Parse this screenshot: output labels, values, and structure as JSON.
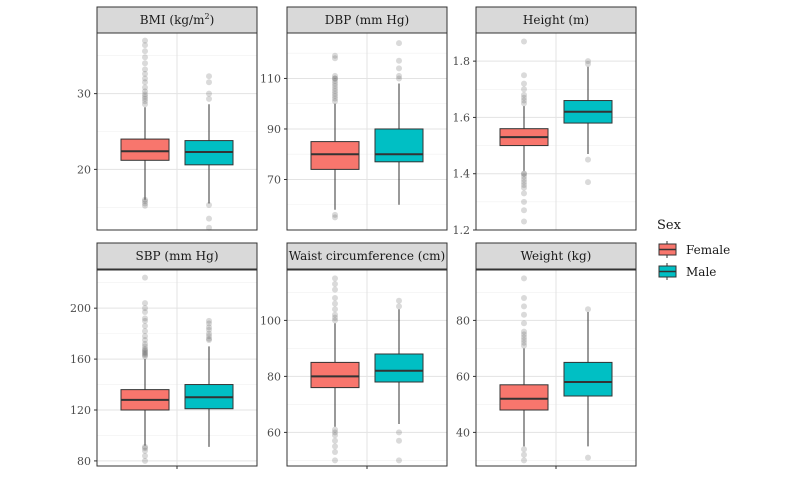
{
  "chart_data": {
    "type": "boxplot",
    "facet_layout": "2 rows x 3 columns, free y scales",
    "legend": {
      "title": "Sex",
      "position": "right",
      "entries": [
        {
          "name": "Female",
          "color": "#F8766D"
        },
        {
          "name": "Male",
          "color": "#00BFC4"
        }
      ]
    },
    "panels": [
      {
        "title": "BMI (kg/m",
        "title_sup": "2",
        "title_end": ")",
        "ylim": [
          12,
          38
        ],
        "yticks": [
          20,
          30
        ],
        "groups": [
          {
            "sex": "Female",
            "q1": 21.2,
            "median": 22.4,
            "q3": 24.0,
            "whisker_low": 16.0,
            "whisker_high": 28.2,
            "outliers": [
              15.2,
              15.5,
              15.8,
              16.0,
              28.6,
              29.0,
              29.3,
              29.6,
              29.9,
              30.3,
              30.8,
              31.5,
              32.0,
              32.6,
              33.2,
              34.0,
              34.8,
              35.6,
              36.4,
              37.0
            ]
          },
          {
            "sex": "Male",
            "q1": 20.6,
            "median": 22.3,
            "q3": 23.8,
            "whisker_low": 15.5,
            "whisker_high": 28.6,
            "outliers": [
              12.3,
              13.5,
              15.3,
              29.3,
              30.0,
              31.5,
              32.3
            ]
          }
        ]
      },
      {
        "title": "DBP (mm Hg)",
        "ylim": [
          50,
          128
        ],
        "yticks": [
          70,
          90,
          110
        ],
        "groups": [
          {
            "sex": "Female",
            "q1": 74,
            "median": 80,
            "q3": 85,
            "whisker_low": 58,
            "whisker_high": 100,
            "outliers": [
              55,
              56,
              101,
              102,
              103,
              104,
              105,
              106,
              107,
              108,
              109,
              110,
              110,
              111,
              118,
              119
            ]
          },
          {
            "sex": "Male",
            "q1": 77,
            "median": 80,
            "q3": 90,
            "whisker_low": 60,
            "whisker_high": 108,
            "outliers": [
              110,
              111,
              114,
              117,
              124
            ]
          }
        ]
      },
      {
        "title": "Height (m)",
        "ylim": [
          1.2,
          1.9
        ],
        "yticks": [
          1.2,
          1.4,
          1.6,
          1.8
        ],
        "groups": [
          {
            "sex": "Female",
            "q1": 1.5,
            "median": 1.53,
            "q3": 1.56,
            "whisker_low": 1.41,
            "whisker_high": 1.64,
            "outliers": [
              1.23,
              1.27,
              1.3,
              1.33,
              1.35,
              1.36,
              1.37,
              1.38,
              1.39,
              1.4,
              1.4,
              1.65,
              1.66,
              1.67,
              1.68,
              1.7,
              1.72,
              1.75,
              1.87
            ]
          },
          {
            "sex": "Male",
            "q1": 1.58,
            "median": 1.62,
            "q3": 1.66,
            "whisker_low": 1.47,
            "whisker_high": 1.78,
            "outliers": [
              1.37,
              1.45,
              1.79,
              1.8
            ]
          }
        ]
      },
      {
        "title": "SBP (mm Hg)",
        "ylim": [
          76,
          230
        ],
        "yticks": [
          80,
          120,
          160,
          200
        ],
        "groups": [
          {
            "sex": "Female",
            "q1": 120,
            "median": 128,
            "q3": 136,
            "whisker_low": 92,
            "whisker_high": 160,
            "outliers": [
              80,
              84,
              88,
              90,
              91,
              162,
              163,
              164,
              165,
              166,
              167,
              168,
              170,
              172,
              175,
              178,
              182,
              186,
              190,
              192,
              197,
              200,
              204,
              224
            ]
          },
          {
            "sex": "Male",
            "q1": 121,
            "median": 130,
            "q3": 140,
            "whisker_low": 91,
            "whisker_high": 170,
            "outliers": [
              175,
              176,
              178,
              180,
              183,
              185,
              188,
              190
            ]
          }
        ]
      },
      {
        "title": "Waist circumference (cm)",
        "ylim": [
          48,
          118
        ],
        "yticks": [
          60,
          80,
          100
        ],
        "groups": [
          {
            "sex": "Female",
            "q1": 76,
            "median": 80,
            "q3": 85,
            "whisker_low": 62,
            "whisker_high": 99,
            "outliers": [
              50,
              53,
              55,
              57,
              59,
              60,
              61,
              100,
              101,
              102,
              104,
              106,
              108,
              111,
              113,
              115
            ]
          },
          {
            "sex": "Male",
            "q1": 78,
            "median": 82,
            "q3": 88,
            "whisker_low": 63,
            "whisker_high": 104,
            "outliers": [
              50,
              57,
              60,
              105,
              107
            ]
          }
        ]
      },
      {
        "title": "Weight (kg)",
        "ylim": [
          28,
          98
        ],
        "yticks": [
          40,
          60,
          80
        ],
        "groups": [
          {
            "sex": "Female",
            "q1": 48,
            "median": 52,
            "q3": 57,
            "whisker_low": 35,
            "whisker_high": 70,
            "outliers": [
              30,
              32,
              34,
              71,
              72,
              73,
              74,
              75,
              76,
              79,
              82,
              85,
              88,
              95
            ]
          },
          {
            "sex": "Male",
            "q1": 53,
            "median": 58,
            "q3": 65,
            "whisker_low": 35,
            "whisker_high": 83,
            "outliers": [
              31,
              84
            ]
          }
        ]
      }
    ]
  }
}
